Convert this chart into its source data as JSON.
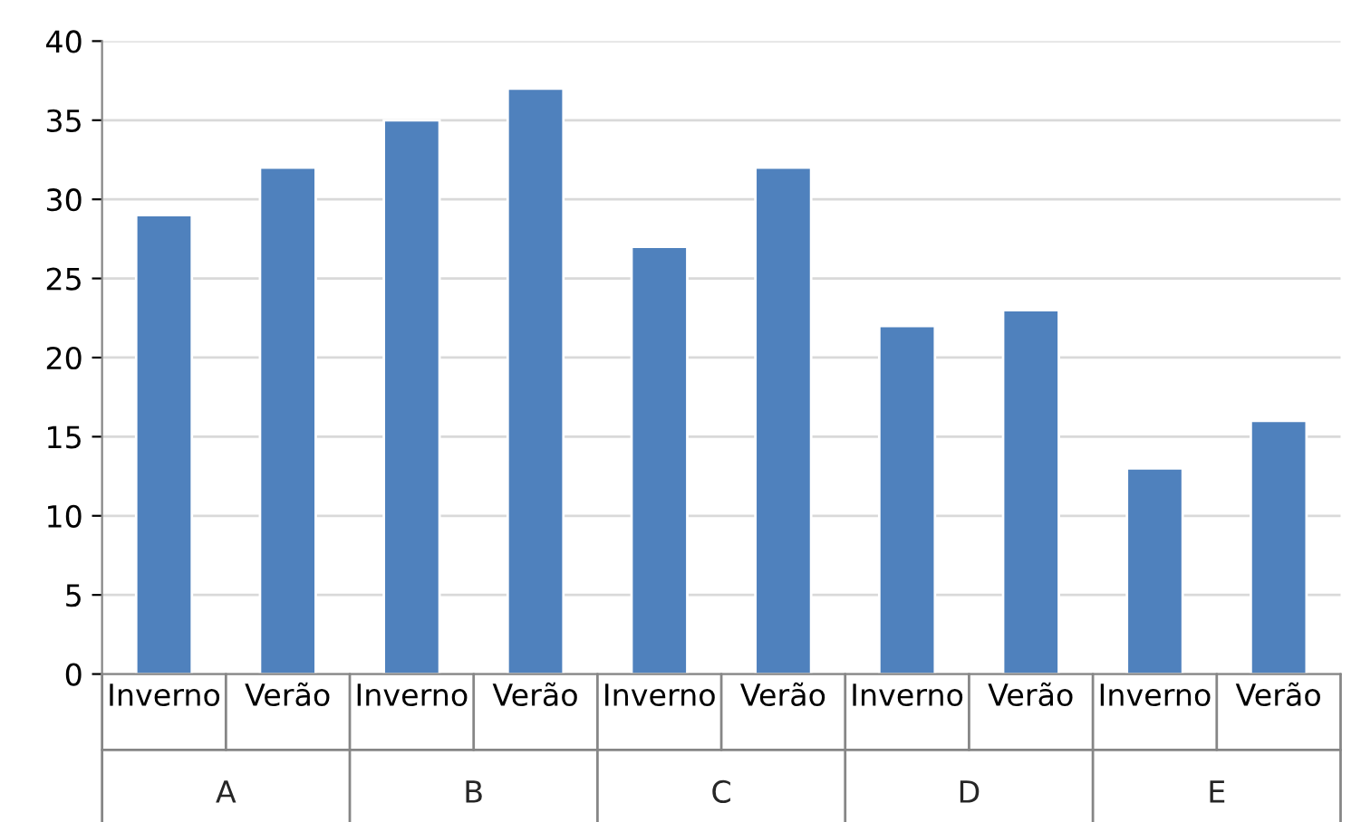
{
  "chart_data": {
    "type": "bar",
    "categories": [
      "Inverno",
      "Verão",
      "Inverno",
      "Verão",
      "Inverno",
      "Verão",
      "Inverno",
      "Verão",
      "Inverno",
      "Verão"
    ],
    "values": [
      29,
      32,
      35,
      37,
      27,
      32,
      22,
      23,
      13,
      16
    ],
    "color": "#4f81bd",
    "ylim": [
      0,
      40
    ],
    "yticks": [
      0,
      5,
      10,
      15,
      20,
      25,
      30,
      35,
      40
    ],
    "grid": "y",
    "annotations": [
      "A",
      "B",
      "C",
      "D",
      "E"
    ]
  }
}
